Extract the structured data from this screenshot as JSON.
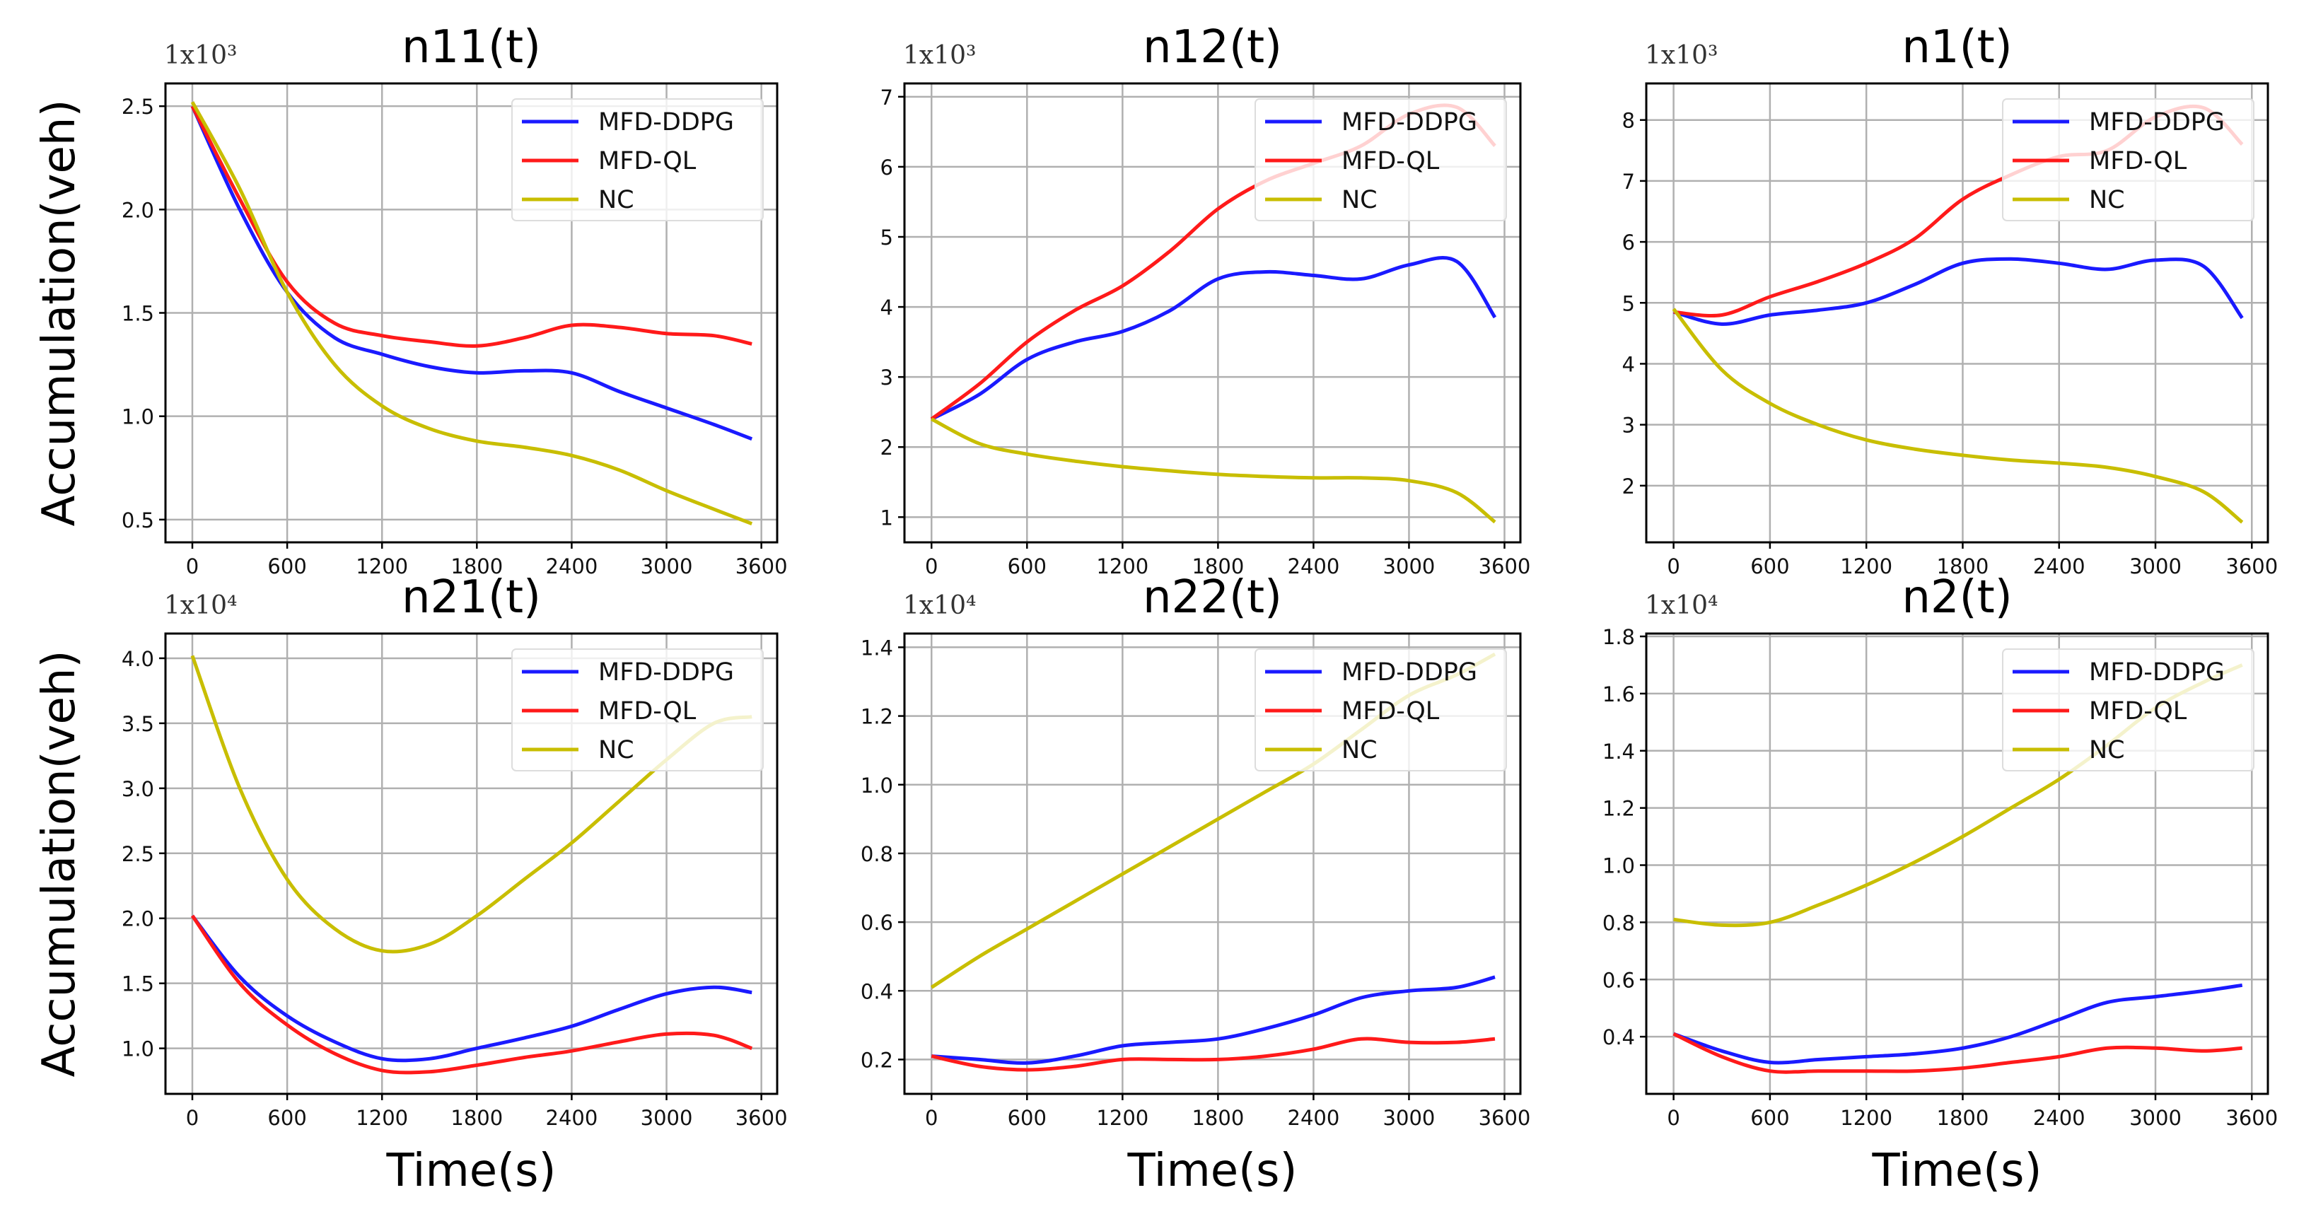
{
  "chart_data": [
    {
      "type": "line",
      "title": "n11(t)",
      "multiplier": "1x10³",
      "xlabel": "",
      "ylabel": "Accumulation(veh)",
      "xlim": [
        -170,
        3700
      ],
      "ylim": [
        0.39,
        2.61
      ],
      "xticks": [
        "0",
        "600",
        "1200",
        "1800",
        "2400",
        "3000",
        "3600"
      ],
      "yticks": [
        "0.5",
        "1.0",
        "1.5",
        "2.0",
        "2.5"
      ],
      "x": [
        0,
        300,
        600,
        900,
        1200,
        1500,
        1800,
        2100,
        2400,
        2700,
        3000,
        3300,
        3540
      ],
      "series": [
        {
          "name": "MFD-DDPG",
          "color": "#1a1aff",
          "values": [
            2.5,
            2.0,
            1.6,
            1.38,
            1.3,
            1.24,
            1.21,
            1.22,
            1.21,
            1.12,
            1.04,
            0.96,
            0.89
          ]
        },
        {
          "name": "MFD-QL",
          "color": "#ff1a1a",
          "values": [
            2.5,
            2.05,
            1.65,
            1.45,
            1.39,
            1.36,
            1.34,
            1.38,
            1.44,
            1.43,
            1.4,
            1.39,
            1.35
          ]
        },
        {
          "name": "NC",
          "color": "#c8be00",
          "values": [
            2.52,
            2.1,
            1.6,
            1.25,
            1.05,
            0.94,
            0.88,
            0.85,
            0.81,
            0.74,
            0.64,
            0.55,
            0.48
          ]
        }
      ],
      "grid": true,
      "legend": "top-right"
    },
    {
      "type": "line",
      "title": "n12(t)",
      "multiplier": "1x10³",
      "xlabel": "",
      "ylabel": "",
      "xlim": [
        -170,
        3700
      ],
      "ylim": [
        0.64,
        7.19
      ],
      "xticks": [
        "0",
        "600",
        "1200",
        "1800",
        "2400",
        "3000",
        "3600"
      ],
      "yticks": [
        "1",
        "2",
        "3",
        "4",
        "5",
        "6",
        "7"
      ],
      "x": [
        0,
        300,
        600,
        900,
        1200,
        1500,
        1800,
        2100,
        2400,
        2700,
        3000,
        3300,
        3540
      ],
      "series": [
        {
          "name": "MFD-DDPG",
          "color": "#1a1aff",
          "values": [
            2.4,
            2.75,
            3.25,
            3.5,
            3.65,
            3.95,
            4.4,
            4.5,
            4.45,
            4.4,
            4.6,
            4.65,
            3.85
          ]
        },
        {
          "name": "MFD-QL",
          "color": "#ff1a1a",
          "values": [
            2.4,
            2.9,
            3.5,
            3.95,
            4.3,
            4.8,
            5.4,
            5.8,
            6.05,
            6.3,
            6.75,
            6.85,
            6.3
          ]
        },
        {
          "name": "NC",
          "color": "#c8be00",
          "values": [
            2.4,
            2.05,
            1.9,
            1.8,
            1.72,
            1.66,
            1.61,
            1.58,
            1.56,
            1.56,
            1.52,
            1.35,
            0.93
          ]
        }
      ],
      "grid": true,
      "legend": "top-right"
    },
    {
      "type": "line",
      "title": "n1(t)",
      "multiplier": "1x10³",
      "xlabel": "",
      "ylabel": "",
      "xlim": [
        -170,
        3700
      ],
      "ylim": [
        1.07,
        8.6
      ],
      "xticks": [
        "0",
        "600",
        "1200",
        "1800",
        "2400",
        "3000",
        "3600"
      ],
      "yticks": [
        "2",
        "3",
        "4",
        "5",
        "6",
        "7",
        "8"
      ],
      "x": [
        0,
        300,
        600,
        900,
        1200,
        1500,
        1800,
        2100,
        2400,
        2700,
        3000,
        3300,
        3540
      ],
      "series": [
        {
          "name": "MFD-DDPG",
          "color": "#1a1aff",
          "values": [
            4.85,
            4.65,
            4.8,
            4.88,
            5.0,
            5.3,
            5.65,
            5.72,
            5.65,
            5.55,
            5.7,
            5.6,
            4.75
          ]
        },
        {
          "name": "MFD-QL",
          "color": "#ff1a1a",
          "values": [
            4.85,
            4.8,
            5.1,
            5.35,
            5.65,
            6.05,
            6.7,
            7.1,
            7.4,
            7.5,
            8.05,
            8.2,
            7.6
          ]
        },
        {
          "name": "NC",
          "color": "#c8be00",
          "values": [
            4.9,
            3.9,
            3.35,
            3.0,
            2.75,
            2.6,
            2.5,
            2.42,
            2.37,
            2.3,
            2.15,
            1.9,
            1.4
          ]
        }
      ],
      "grid": true,
      "legend": "top-right"
    },
    {
      "type": "line",
      "title": "n21(t)",
      "multiplier": "1x10⁴",
      "xlabel": "Time(s)",
      "ylabel": "Accumulation(veh)",
      "xlim": [
        -170,
        3700
      ],
      "ylim": [
        0.65,
        4.19
      ],
      "xticks": [
        "0",
        "600",
        "1200",
        "1800",
        "2400",
        "3000",
        "3600"
      ],
      "yticks": [
        "1.0",
        "1.5",
        "2.0",
        "2.5",
        "3.0",
        "3.5",
        "4.0"
      ],
      "x": [
        0,
        300,
        600,
        900,
        1200,
        1500,
        1800,
        2100,
        2400,
        2700,
        3000,
        3300,
        3540
      ],
      "series": [
        {
          "name": "MFD-DDPG",
          "color": "#1a1aff",
          "values": [
            2.02,
            1.55,
            1.25,
            1.05,
            0.92,
            0.92,
            1.0,
            1.08,
            1.17,
            1.3,
            1.42,
            1.47,
            1.43
          ]
        },
        {
          "name": "MFD-QL",
          "color": "#ff1a1a",
          "values": [
            2.02,
            1.5,
            1.18,
            0.96,
            0.83,
            0.82,
            0.87,
            0.93,
            0.98,
            1.05,
            1.11,
            1.1,
            1.0
          ]
        },
        {
          "name": "NC",
          "color": "#c8be00",
          "values": [
            4.02,
            3.0,
            2.3,
            1.92,
            1.75,
            1.8,
            2.02,
            2.3,
            2.58,
            2.9,
            3.22,
            3.5,
            3.55
          ]
        }
      ],
      "grid": true,
      "legend": "top-right"
    },
    {
      "type": "line",
      "title": "n22(t)",
      "multiplier": "1x10⁴",
      "xlabel": "Time(s)",
      "ylabel": "",
      "xlim": [
        -170,
        3700
      ],
      "ylim": [
        0.1,
        1.44
      ],
      "xticks": [
        "0",
        "600",
        "1200",
        "1800",
        "2400",
        "3000",
        "3600"
      ],
      "yticks": [
        "0.2",
        "0.4",
        "0.6",
        "0.8",
        "1.0",
        "1.2",
        "1.4"
      ],
      "x": [
        0,
        300,
        600,
        900,
        1200,
        1500,
        1800,
        2100,
        2400,
        2700,
        3000,
        3300,
        3540
      ],
      "series": [
        {
          "name": "MFD-DDPG",
          "color": "#1a1aff",
          "values": [
            0.21,
            0.2,
            0.19,
            0.21,
            0.24,
            0.25,
            0.26,
            0.29,
            0.33,
            0.38,
            0.4,
            0.41,
            0.44
          ]
        },
        {
          "name": "MFD-QL",
          "color": "#ff1a1a",
          "values": [
            0.21,
            0.18,
            0.17,
            0.18,
            0.2,
            0.2,
            0.2,
            0.21,
            0.23,
            0.26,
            0.25,
            0.25,
            0.26
          ]
        },
        {
          "name": "NC",
          "color": "#c8be00",
          "values": [
            0.41,
            0.5,
            0.58,
            0.66,
            0.74,
            0.82,
            0.9,
            0.98,
            1.06,
            1.16,
            1.26,
            1.32,
            1.38
          ]
        }
      ],
      "grid": true,
      "legend": "top-right"
    },
    {
      "type": "line",
      "title": "n2(t)",
      "multiplier": "1x10⁴",
      "xlabel": "Time(s)",
      "ylabel": "",
      "xlim": [
        -170,
        3700
      ],
      "ylim": [
        0.2,
        1.81
      ],
      "xticks": [
        "0",
        "600",
        "1200",
        "1800",
        "2400",
        "3000",
        "3600"
      ],
      "yticks": [
        "0.4",
        "0.6",
        "0.8",
        "1.0",
        "1.2",
        "1.4",
        "1.6",
        "1.8"
      ],
      "x": [
        0,
        300,
        600,
        900,
        1200,
        1500,
        1800,
        2100,
        2400,
        2700,
        3000,
        3300,
        3540
      ],
      "series": [
        {
          "name": "MFD-DDPG",
          "color": "#1a1aff",
          "values": [
            0.41,
            0.35,
            0.31,
            0.32,
            0.33,
            0.34,
            0.36,
            0.4,
            0.46,
            0.52,
            0.54,
            0.56,
            0.58
          ]
        },
        {
          "name": "MFD-QL",
          "color": "#ff1a1a",
          "values": [
            0.41,
            0.33,
            0.28,
            0.28,
            0.28,
            0.28,
            0.29,
            0.31,
            0.33,
            0.36,
            0.36,
            0.35,
            0.36
          ]
        },
        {
          "name": "NC",
          "color": "#c8be00",
          "values": [
            0.81,
            0.79,
            0.8,
            0.86,
            0.93,
            1.01,
            1.1,
            1.2,
            1.3,
            1.42,
            1.55,
            1.64,
            1.7
          ]
        }
      ],
      "grid": true,
      "legend": "top-right"
    }
  ]
}
